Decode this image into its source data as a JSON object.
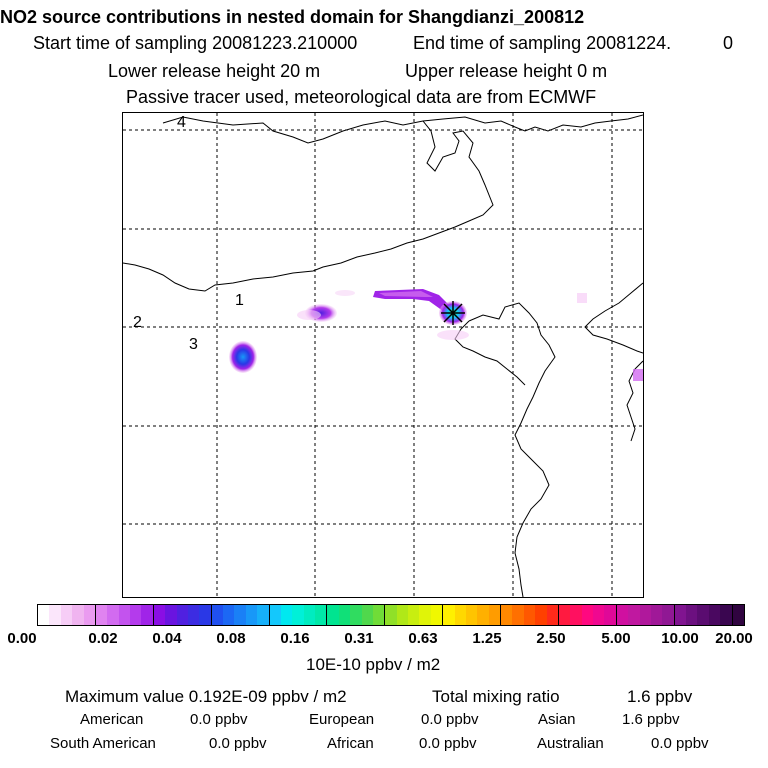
{
  "header": {
    "title": "NO2 source contributions in nested domain for Shangdianzi_200812",
    "start_sampling": "Start time of sampling 20081223.210000",
    "end_sampling": "End time of sampling 20081224.",
    "end_sampling_suffix": "0",
    "lower_release": "Lower release height   20 m",
    "upper_release": "Upper release height    0 m",
    "tracer_note": "Passive tracer used, meteorological data are from ECMWF"
  },
  "map": {
    "latitude_labels": [
      "4",
      "2"
    ],
    "region_labels": [
      "1",
      "3"
    ]
  },
  "colorbar": {
    "tick_labels": [
      "0.00",
      "0.02",
      "0.04",
      "0.08",
      "0.16",
      "0.31",
      "0.63",
      "1.25",
      "2.50",
      "5.00",
      "10.00",
      "20.00"
    ],
    "colors": [
      "#ffffff",
      "#fbe6fb",
      "#f6cdf6",
      "#f0b4f0",
      "#ea9bf0",
      "#e083f0",
      "#d26bf0",
      "#c353ee",
      "#b43bec",
      "#a024e8",
      "#8a0ee4",
      "#6a14e0",
      "#5020e0",
      "#3c2ce2",
      "#2a38e6",
      "#2050f0",
      "#1c68f4",
      "#1a80f6",
      "#1898f8",
      "#16b0fa",
      "#14c8fc",
      "#00e8f0",
      "#00f0d8",
      "#00ecc0",
      "#00e8a8",
      "#00e490",
      "#10e078",
      "#30dc60",
      "#50d84c",
      "#70dc38",
      "#90e028",
      "#b0e818",
      "#c8ee10",
      "#e0f408",
      "#f0f800",
      "#fff000",
      "#ffd800",
      "#ffc400",
      "#ffb000",
      "#ff9c00",
      "#ff8800",
      "#ff7000",
      "#ff5800",
      "#ff4000",
      "#ff2a1a",
      "#ff1a40",
      "#ff1060",
      "#ff0880",
      "#f00890",
      "#e00898",
      "#d010a0",
      "#c018a0",
      "#b0189c",
      "#a01898",
      "#901894",
      "#801490",
      "#6c1080",
      "#5a0c70",
      "#4a0860",
      "#3a0650",
      "#300440"
    ]
  },
  "units": "10E-10 ppbv / m2",
  "summary": {
    "maximum_value": "Maximum value  0.192E-09 ppbv / m2",
    "total_label": "Total mixing ratio",
    "total_value": "1.6 ppbv",
    "regions": [
      {
        "name": "American",
        "value": "0.0 ppbv"
      },
      {
        "name": "European",
        "value": "0.0 ppbv"
      },
      {
        "name": "Asian",
        "value": "1.6 ppbv"
      },
      {
        "name": "South American",
        "value": "0.0 ppbv"
      },
      {
        "name": "African",
        "value": "0.0 ppbv"
      },
      {
        "name": "Australian",
        "value": "0.0 ppbv"
      }
    ]
  }
}
